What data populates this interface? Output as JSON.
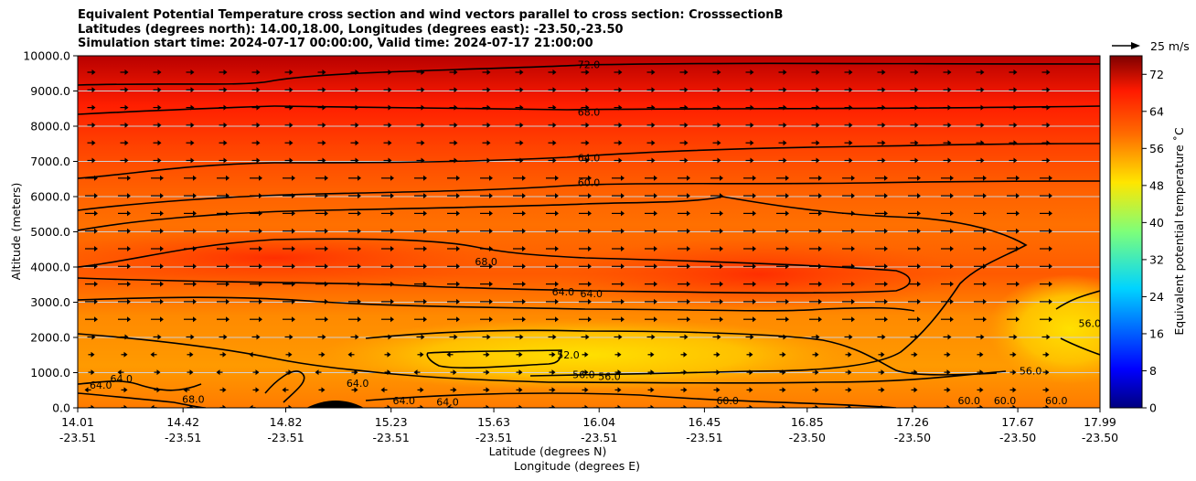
{
  "title": {
    "line1": "Equivalent Potential Temperature cross section and wind vectors parallel to cross section: CrosssectionB",
    "line2": "Latitudes (degrees north): 14.00,18.00, Longitudes (degrees east): -23.50,-23.50",
    "line3": "Simulation start time: 2024-07-17 00:00:00, Valid time: 2024-07-17 21:00:00"
  },
  "chart_data": {
    "type": "contourf",
    "ylabel": "Altitude (meters)",
    "xlabel_lat": "Latitude (degrees N)",
    "xlabel_lon": "Longitude (degrees E)",
    "ylim": [
      0,
      10000
    ],
    "yticks": [
      "0.0",
      "1000.0",
      "2000.0",
      "3000.0",
      "4000.0",
      "5000.0",
      "6000.0",
      "7000.0",
      "8000.0",
      "9000.0",
      "10000.0"
    ],
    "xlim": [
      14.01,
      17.99
    ],
    "xticks": [
      {
        "lat": "14.01",
        "lon": "-23.51",
        "v": 14.01
      },
      {
        "lat": "14.42",
        "lon": "-23.51",
        "v": 14.42
      },
      {
        "lat": "14.82",
        "lon": "-23.51",
        "v": 14.82
      },
      {
        "lat": "15.23",
        "lon": "-23.51",
        "v": 15.23
      },
      {
        "lat": "15.63",
        "lon": "-23.51",
        "v": 15.63
      },
      {
        "lat": "16.04",
        "lon": "-23.51",
        "v": 16.04
      },
      {
        "lat": "16.45",
        "lon": "-23.51",
        "v": 16.45
      },
      {
        "lat": "16.85",
        "lon": "-23.50",
        "v": 16.85
      },
      {
        "lat": "17.26",
        "lon": "-23.50",
        "v": 17.26
      },
      {
        "lat": "17.67",
        "lon": "-23.50",
        "v": 17.67
      },
      {
        "lat": "17.99",
        "lon": "-23.50",
        "v": 17.99
      }
    ],
    "grid": "horizontal",
    "colorbar": {
      "label": "Equivalent potential temperature ˚C",
      "min": 0,
      "max": 76,
      "ticks": [
        "0",
        "8",
        "16",
        "24",
        "32",
        "40",
        "48",
        "56",
        "64",
        "72"
      ]
    },
    "quiver_key": "25 m/s",
    "contour_labels": [
      {
        "text": "72.0",
        "x": 16.0,
        "z": 9700
      },
      {
        "text": "68.0",
        "x": 16.0,
        "z": 8350
      },
      {
        "text": "64.0",
        "x": 16.0,
        "z": 7050
      },
      {
        "text": "60.0",
        "x": 16.0,
        "z": 6350
      },
      {
        "text": "68.0",
        "x": 15.6,
        "z": 4100
      },
      {
        "text": "64.0",
        "x": 15.9,
        "z": 3250
      },
      {
        "text": "64.0",
        "x": 16.01,
        "z": 3200
      },
      {
        "text": "52.0",
        "x": 15.92,
        "z": 1450
      },
      {
        "text": "56.0",
        "x": 15.98,
        "z": 900
      },
      {
        "text": "56.0",
        "x": 16.08,
        "z": 850
      },
      {
        "text": "56.0",
        "x": 17.72,
        "z": 1000
      },
      {
        "text": "56.0",
        "x": 17.95,
        "z": 2350
      },
      {
        "text": "64.0",
        "x": 14.1,
        "z": 600
      },
      {
        "text": "64.0",
        "x": 14.18,
        "z": 780
      },
      {
        "text": "68.0",
        "x": 14.46,
        "z": 200
      },
      {
        "text": "64.0",
        "x": 15.1,
        "z": 650
      },
      {
        "text": "64.0",
        "x": 15.28,
        "z": 150
      },
      {
        "text": "64.0",
        "x": 15.45,
        "z": 120
      },
      {
        "text": "60.0",
        "x": 16.54,
        "z": 150
      },
      {
        "text": "60.0",
        "x": 17.48,
        "z": 150
      },
      {
        "text": "60.0",
        "x": 17.62,
        "z": 150
      },
      {
        "text": "60.0",
        "x": 17.82,
        "z": 150
      }
    ]
  }
}
